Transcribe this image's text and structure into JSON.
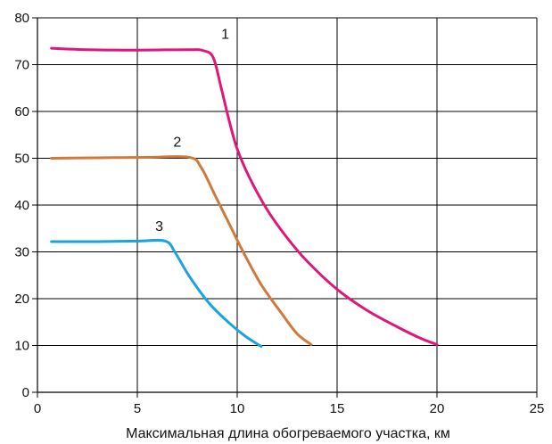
{
  "chart_data": {
    "type": "line",
    "title": "",
    "xlabel": "Максимальная длина обогреваемого участка, км",
    "ylabel": "",
    "xlim": [
      0,
      25
    ],
    "ylim": [
      0,
      80
    ],
    "xticks": [
      "0",
      "5",
      "10",
      "15",
      "20",
      "25"
    ],
    "yticks": [
      "0",
      "10",
      "20",
      "30",
      "40",
      "50",
      "60",
      "70",
      "80"
    ],
    "grid": true,
    "legend": "none",
    "series": [
      {
        "label": "1",
        "color": "#e0177a",
        "points": [
          [
            0.7,
            73.5
          ],
          [
            2.5,
            73.2
          ],
          [
            5,
            73.1
          ],
          [
            7.5,
            73.2
          ],
          [
            8.3,
            73.0
          ],
          [
            8.8,
            71.5
          ],
          [
            9.2,
            65
          ],
          [
            9.6,
            58
          ],
          [
            10.0,
            52
          ],
          [
            10.6,
            46
          ],
          [
            11.5,
            39
          ],
          [
            12.5,
            33
          ],
          [
            13.5,
            28
          ],
          [
            15.0,
            22
          ],
          [
            16.5,
            17.5
          ],
          [
            18.0,
            14
          ],
          [
            19.2,
            11.5
          ],
          [
            20.0,
            10.2
          ]
        ]
      },
      {
        "label": "2",
        "color": "#d2793a",
        "points": [
          [
            0.7,
            50
          ],
          [
            3,
            50.1
          ],
          [
            5.5,
            50.2
          ],
          [
            7.6,
            50.2
          ],
          [
            8.2,
            48
          ],
          [
            8.9,
            42
          ],
          [
            9.6,
            36
          ],
          [
            10.3,
            30
          ],
          [
            11.2,
            23
          ],
          [
            12.2,
            17
          ],
          [
            13.0,
            12.5
          ],
          [
            13.7,
            10.2
          ]
        ]
      },
      {
        "label": "3",
        "color": "#1aa3e0",
        "points": [
          [
            0.7,
            32.2
          ],
          [
            3,
            32.2
          ],
          [
            5,
            32.3
          ],
          [
            6.4,
            32.3
          ],
          [
            6.9,
            29.8
          ],
          [
            7.6,
            24.8
          ],
          [
            8.6,
            19
          ],
          [
            9.6,
            14.8
          ],
          [
            10.4,
            12
          ],
          [
            11.2,
            9.8
          ]
        ]
      }
    ],
    "curve_labels": [
      {
        "text": "1",
        "x": 9.4,
        "y": 75.5
      },
      {
        "text": "2",
        "x": 7.0,
        "y": 52.5
      },
      {
        "text": "3",
        "x": 6.1,
        "y": 34.5
      }
    ]
  }
}
